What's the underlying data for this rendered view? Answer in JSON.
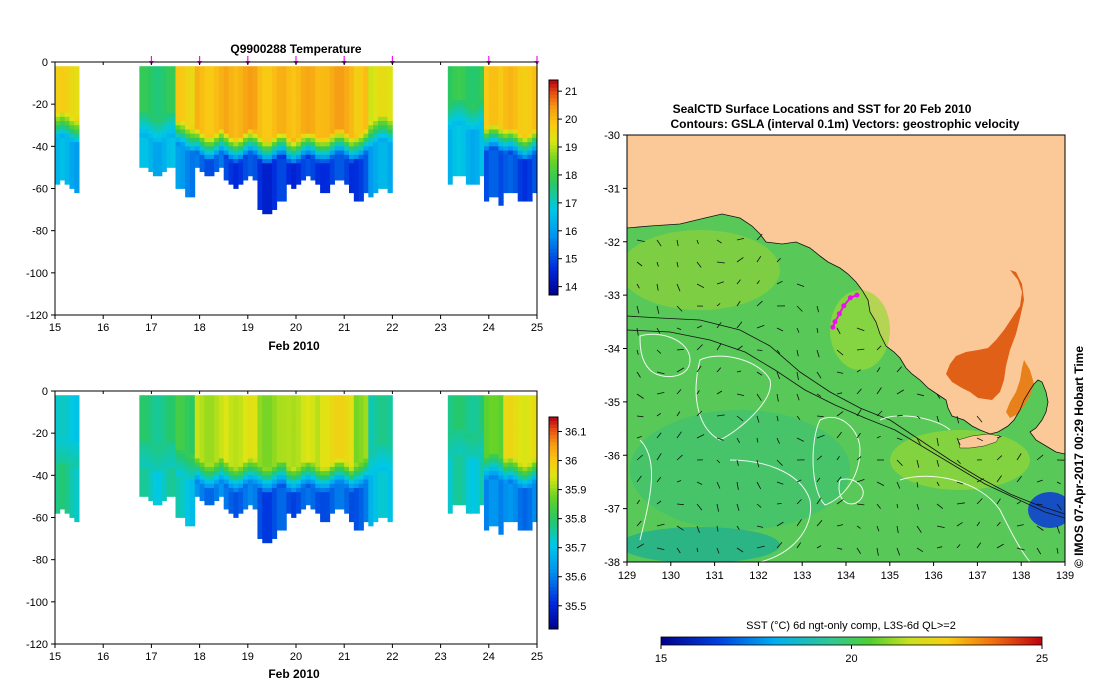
{
  "page_title": "Q9900288 Temperature / SealCTD Surface Locations and SST",
  "chart_data": [
    {
      "type": "heatmap",
      "title": "Q9900288  Temperature",
      "xlabel": "Feb 2010",
      "ylabel": "",
      "x_ticks": [
        "15",
        "16",
        "17",
        "18",
        "19",
        "20",
        "21",
        "22",
        "23",
        "24",
        "25"
      ],
      "y_ticks": [
        "0",
        "-20",
        "-40",
        "-60",
        "-80",
        "-100",
        "-120"
      ],
      "xlim": [
        15,
        25
      ],
      "ylim": [
        -120,
        0
      ],
      "profile_markers": [
        17,
        18,
        19,
        20,
        21,
        22,
        24,
        25
      ],
      "colorbar_ticks": [
        "21",
        "20",
        "19",
        "18",
        "17",
        "16",
        "15",
        "14"
      ],
      "colorbar_range": [
        13.7,
        21.4
      ],
      "profile_groups": [
        {
          "x0": 15.0,
          "x1": 15.5,
          "bottom": -58,
          "surface": 19.6,
          "thermocline": -28,
          "deep": 16.3
        },
        {
          "x0": 16.75,
          "x1": 17.5,
          "bottom": -51,
          "surface": 17.7,
          "thermocline": -28,
          "deep": 16.4
        },
        {
          "x0": 17.5,
          "x1": 17.9,
          "bottom": -61,
          "surface": 19.7,
          "thermocline": -32,
          "deep": 15.8
        },
        {
          "x0": 17.9,
          "x1": 18.5,
          "bottom": -51,
          "surface": 20.0,
          "thermocline": -36,
          "deep": 15.3
        },
        {
          "x0": 18.5,
          "x1": 19.2,
          "bottom": -56,
          "surface": 20.2,
          "thermocline": -37,
          "deep": 14.9
        },
        {
          "x0": 19.2,
          "x1": 19.8,
          "bottom": -68,
          "surface": 20.0,
          "thermocline": -38,
          "deep": 14.7
        },
        {
          "x0": 19.8,
          "x1": 20.5,
          "bottom": -56,
          "surface": 20.1,
          "thermocline": -38,
          "deep": 14.8
        },
        {
          "x0": 20.5,
          "x1": 21.2,
          "bottom": -58,
          "surface": 20.2,
          "thermocline": -37,
          "deep": 14.9
        },
        {
          "x0": 21.2,
          "x1": 21.5,
          "bottom": -63,
          "surface": 19.9,
          "thermocline": -36,
          "deep": 15.0
        },
        {
          "x0": 21.5,
          "x1": 22.0,
          "bottom": -61,
          "surface": 19.3,
          "thermocline": -30,
          "deep": 16.2
        },
        {
          "x0": 23.15,
          "x1": 23.9,
          "bottom": -55,
          "surface": 17.8,
          "thermocline": -22,
          "deep": 16.5
        },
        {
          "x0": 23.9,
          "x1": 24.3,
          "bottom": -66,
          "surface": 19.8,
          "thermocline": -34,
          "deep": 15.0
        },
        {
          "x0": 24.3,
          "x1": 25.0,
          "bottom": -63,
          "surface": 19.9,
          "thermocline": -36,
          "deep": 15.0
        }
      ]
    },
    {
      "type": "heatmap",
      "title": "",
      "xlabel": "Feb 2010",
      "ylabel": "",
      "x_ticks": [
        "15",
        "16",
        "17",
        "18",
        "19",
        "20",
        "21",
        "22",
        "23",
        "24",
        "25"
      ],
      "y_ticks": [
        "0",
        "-20",
        "-40",
        "-60",
        "-80",
        "-100",
        "-120"
      ],
      "xlim": [
        15,
        25
      ],
      "ylim": [
        -120,
        0
      ],
      "colorbar_ticks": [
        "36.1",
        "36",
        "35.9",
        "35.8",
        "35.7",
        "35.6",
        "35.5"
      ],
      "colorbar_range": [
        35.42,
        36.15
      ],
      "profile_groups": [
        {
          "x0": 15.0,
          "x1": 15.5,
          "bottom": -58,
          "surface": 35.72,
          "thermocline": -26,
          "deep": 35.76
        },
        {
          "x0": 16.75,
          "x1": 17.5,
          "bottom": -51,
          "surface": 35.78,
          "thermocline": -28,
          "deep": 35.74
        },
        {
          "x0": 17.5,
          "x1": 17.9,
          "bottom": -61,
          "surface": 35.82,
          "thermocline": -32,
          "deep": 35.72
        },
        {
          "x0": 17.9,
          "x1": 18.5,
          "bottom": -51,
          "surface": 35.92,
          "thermocline": -36,
          "deep": 35.6
        },
        {
          "x0": 18.5,
          "x1": 19.2,
          "bottom": -56,
          "surface": 35.94,
          "thermocline": -37,
          "deep": 35.58
        },
        {
          "x0": 19.2,
          "x1": 19.8,
          "bottom": -68,
          "surface": 35.9,
          "thermocline": -38,
          "deep": 35.55
        },
        {
          "x0": 19.8,
          "x1": 20.5,
          "bottom": -56,
          "surface": 35.93,
          "thermocline": -38,
          "deep": 35.56
        },
        {
          "x0": 20.5,
          "x1": 21.2,
          "bottom": -58,
          "surface": 35.97,
          "thermocline": -37,
          "deep": 35.57
        },
        {
          "x0": 21.2,
          "x1": 21.5,
          "bottom": -63,
          "surface": 35.9,
          "thermocline": -36,
          "deep": 35.58
        },
        {
          "x0": 21.5,
          "x1": 22.0,
          "bottom": -61,
          "surface": 35.76,
          "thermocline": -30,
          "deep": 35.7
        },
        {
          "x0": 23.15,
          "x1": 23.9,
          "bottom": -55,
          "surface": 35.78,
          "thermocline": -22,
          "deep": 35.74
        },
        {
          "x0": 23.9,
          "x1": 24.3,
          "bottom": -66,
          "surface": 35.86,
          "thermocline": -34,
          "deep": 35.6
        },
        {
          "x0": 24.3,
          "x1": 25.0,
          "bottom": -63,
          "surface": 35.96,
          "thermocline": -36,
          "deep": 35.6
        }
      ]
    },
    {
      "type": "heatmap",
      "title": "SealCTD Surface Locations and SST for 20 Feb 2010",
      "subtitle": "Contours: GSLA (interval 0.1m) Vectors: geostrophic velocity",
      "xlabel": "",
      "ylabel": "",
      "x_ticks": [
        "129",
        "130",
        "131",
        "132",
        "133",
        "134",
        "135",
        "136",
        "137",
        "138",
        "139"
      ],
      "y_ticks": [
        "-30",
        "-31",
        "-32",
        "-33",
        "-34",
        "-35",
        "-36",
        "-37",
        "-38"
      ],
      "xlim": [
        129,
        139
      ],
      "ylim": [
        -38,
        -30
      ],
      "colorbar_label": "SST (°C) 6d ngt-only comp, L3S-6d QL>=2",
      "colorbar_ticks": [
        "15",
        "20",
        "25"
      ],
      "colorbar_range": [
        15,
        25
      ],
      "seal_track": [
        {
          "lon": 133.7,
          "lat": -33.6
        },
        {
          "lon": 133.75,
          "lat": -33.5
        },
        {
          "lon": 133.85,
          "lat": -33.35
        },
        {
          "lon": 133.95,
          "lat": -33.2
        },
        {
          "lon": 134.1,
          "lat": -33.05
        },
        {
          "lon": 134.25,
          "lat": -33.0
        }
      ],
      "credit": "© IMOS 07-Apr-2017 00:29 Hobart Time"
    }
  ],
  "colors": {
    "land": "#fbc998",
    "track": "#ee11ee",
    "axis": "#000000"
  }
}
